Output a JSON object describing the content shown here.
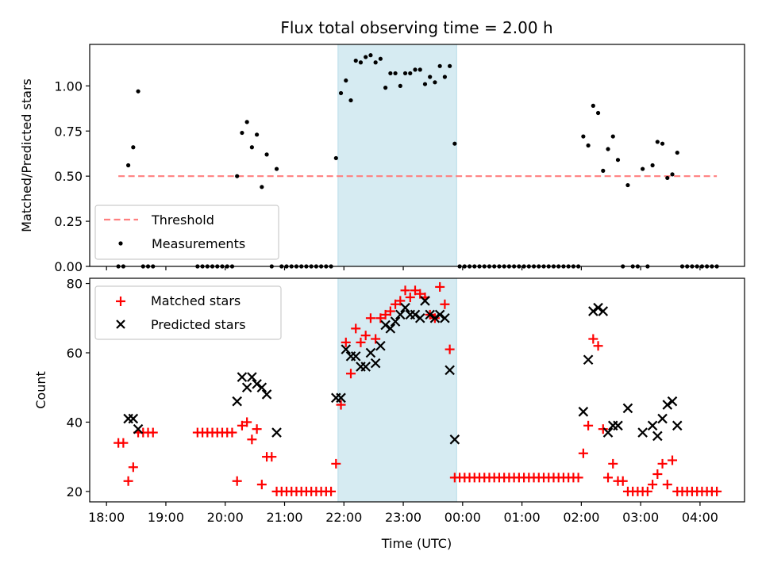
{
  "chart_data": [
    {
      "type": "scatter",
      "title": "Flux total observing time = 2.00 h",
      "xlabel": "",
      "ylabel": "Matched/Predicted stars",
      "ylim": [
        0,
        1.23
      ],
      "yticks": [
        0.0,
        0.25,
        0.5,
        0.75,
        1.0
      ],
      "ytick_labels": [
        "0.00",
        "0.25",
        "0.50",
        "0.75",
        "1.00"
      ],
      "x_unit": "minutes after 18:00 UTC",
      "xlim": [
        -17,
        645
      ],
      "highlight_span": {
        "start": 234,
        "end": 354,
        "color": "#add8e6"
      },
      "legend": {
        "placement": "lower-left",
        "entries": [
          "Threshold",
          "Measurements"
        ]
      },
      "threshold": {
        "name": "Threshold",
        "value": 0.5,
        "x_start": 12,
        "x_end": 617,
        "color": "#ff7f7f",
        "style": "dashed"
      },
      "series": [
        {
          "name": "Measurements",
          "color": "#000000",
          "x": [
            12,
            17,
            22,
            27,
            32,
            37,
            42,
            47,
            92,
            97,
            102,
            107,
            112,
            117,
            122,
            127,
            132,
            137,
            142,
            147,
            152,
            157,
            162,
            167,
            172,
            177,
            182,
            187,
            192,
            197,
            202,
            207,
            212,
            217,
            222,
            227,
            232,
            237,
            242,
            247,
            252,
            257,
            262,
            267,
            272,
            277,
            282,
            287,
            292,
            297,
            302,
            307,
            312,
            317,
            322,
            327,
            332,
            337,
            342,
            347,
            352,
            357,
            362,
            367,
            372,
            377,
            382,
            387,
            392,
            397,
            402,
            407,
            412,
            417,
            422,
            427,
            432,
            437,
            442,
            447,
            452,
            457,
            462,
            467,
            472,
            477,
            482,
            487,
            492,
            497,
            502,
            507,
            512,
            517,
            522,
            527,
            532,
            537,
            542,
            547,
            552,
            557,
            562,
            567,
            572,
            577,
            582,
            587,
            592,
            597,
            602,
            607,
            612,
            617
          ],
          "y": [
            0,
            0,
            0.56,
            0.66,
            0.97,
            0,
            0,
            0,
            0,
            0,
            0,
            0,
            0,
            0,
            0,
            0,
            0.5,
            0.74,
            0.8,
            0.66,
            0.73,
            0.44,
            0.62,
            0,
            0.54,
            0,
            0,
            0,
            0,
            0,
            0,
            0,
            0,
            0,
            0,
            0,
            0.6,
            0.96,
            1.03,
            0.92,
            1.14,
            1.13,
            1.16,
            1.17,
            1.13,
            1.15,
            0.99,
            1.07,
            1.07,
            1.0,
            1.07,
            1.07,
            1.09,
            1.09,
            1.01,
            1.05,
            1.02,
            1.11,
            1.05,
            1.11,
            0.68,
            0,
            0,
            0,
            0,
            0,
            0,
            0,
            0,
            0,
            0,
            0,
            0,
            0,
            0,
            0,
            0,
            0,
            0,
            0,
            0,
            0,
            0,
            0,
            0,
            0,
            0.72,
            0.67,
            0.89,
            0.85,
            0.53,
            0.65,
            0.72,
            0.59,
            0,
            0.45,
            0,
            0,
            0.54,
            0,
            0.56,
            0.69,
            0.68,
            0.49,
            0.51,
            0.63,
            0,
            0,
            0,
            0,
            0,
            0,
            0,
            0
          ]
        }
      ]
    },
    {
      "type": "scatter",
      "title": "",
      "xlabel": "Time (UTC)",
      "ylabel": "Count",
      "ylim": [
        17,
        81.5
      ],
      "yticks": [
        20,
        40,
        60,
        80
      ],
      "ytick_labels": [
        "20",
        "40",
        "60",
        "80"
      ],
      "x_unit": "minutes after 18:00 UTC",
      "xlim": [
        -17,
        645
      ],
      "xticks": [
        0,
        60,
        120,
        180,
        240,
        300,
        360,
        420,
        480,
        540,
        600
      ],
      "xtick_labels": [
        "18:00",
        "19:00",
        "20:00",
        "21:00",
        "22:00",
        "23:00",
        "00:00",
        "01:00",
        "02:00",
        "03:00",
        "04:00"
      ],
      "highlight_span": {
        "start": 234,
        "end": 354,
        "color": "#add8e6"
      },
      "legend": {
        "placement": "upper-left",
        "entries": [
          "Matched stars",
          "Predicted stars"
        ]
      },
      "series": [
        {
          "name": "Matched stars",
          "marker": "+",
          "color": "#ff0000",
          "x": [
            12,
            17,
            22,
            27,
            32,
            37,
            42,
            47,
            92,
            97,
            102,
            107,
            112,
            117,
            122,
            127,
            132,
            137,
            142,
            147,
            152,
            157,
            162,
            167,
            172,
            177,
            182,
            187,
            192,
            197,
            202,
            207,
            212,
            217,
            222,
            227,
            232,
            237,
            242,
            247,
            252,
            257,
            262,
            267,
            272,
            277,
            282,
            287,
            292,
            297,
            302,
            307,
            312,
            317,
            322,
            327,
            332,
            337,
            342,
            347,
            352,
            357,
            362,
            367,
            372,
            377,
            382,
            387,
            392,
            397,
            402,
            407,
            412,
            417,
            422,
            427,
            432,
            437,
            442,
            447,
            452,
            457,
            462,
            467,
            472,
            477,
            482,
            487,
            492,
            497,
            502,
            507,
            512,
            517,
            522,
            527,
            532,
            537,
            542,
            547,
            552,
            557,
            562,
            567,
            572,
            577,
            582,
            587,
            592,
            597,
            602,
            607,
            612,
            617
          ],
          "y": [
            34,
            34,
            23,
            27,
            37,
            37,
            37,
            37,
            37,
            37,
            37,
            37,
            37,
            37,
            37,
            37,
            23,
            39,
            40,
            35,
            38,
            22,
            30,
            30,
            20,
            20,
            20,
            20,
            20,
            20,
            20,
            20,
            20,
            20,
            20,
            20,
            28,
            45,
            63,
            54,
            67,
            63,
            65,
            70,
            64,
            70,
            71,
            72,
            74,
            75,
            78,
            76,
            78,
            77,
            76,
            71,
            70,
            79,
            74,
            61,
            24,
            24,
            24,
            24,
            24,
            24,
            24,
            24,
            24,
            24,
            24,
            24,
            24,
            24,
            24,
            24,
            24,
            24,
            24,
            24,
            24,
            24,
            24,
            24,
            24,
            24,
            31,
            39,
            64,
            62,
            38,
            24,
            28,
            23,
            23,
            20,
            20,
            20,
            20,
            20,
            22,
            25,
            28,
            22,
            29,
            20,
            20,
            20,
            20,
            20,
            20,
            20,
            20,
            20
          ]
        },
        {
          "name": "Predicted stars",
          "marker": "x",
          "color": "#000000",
          "x": [
            22,
            27,
            32,
            132,
            137,
            142,
            147,
            152,
            157,
            162,
            172,
            232,
            237,
            242,
            247,
            252,
            257,
            262,
            267,
            272,
            277,
            282,
            287,
            292,
            297,
            302,
            307,
            312,
            317,
            322,
            327,
            332,
            337,
            342,
            347,
            352,
            482,
            487,
            492,
            497,
            502,
            507,
            512,
            517,
            527,
            542,
            552,
            557,
            562,
            567,
            572,
            577
          ],
          "y": [
            41,
            41,
            38,
            46,
            53,
            50,
            53,
            51,
            50,
            48,
            37,
            47,
            47,
            61,
            59,
            59,
            56,
            56,
            60,
            57,
            62,
            68,
            67,
            69,
            71,
            73,
            71,
            71,
            70,
            75,
            71,
            70,
            71,
            70,
            55,
            35,
            43,
            58,
            72,
            73,
            72,
            37,
            39,
            39,
            44,
            37,
            39,
            36,
            41,
            45,
            46,
            39
          ]
        }
      ]
    }
  ]
}
